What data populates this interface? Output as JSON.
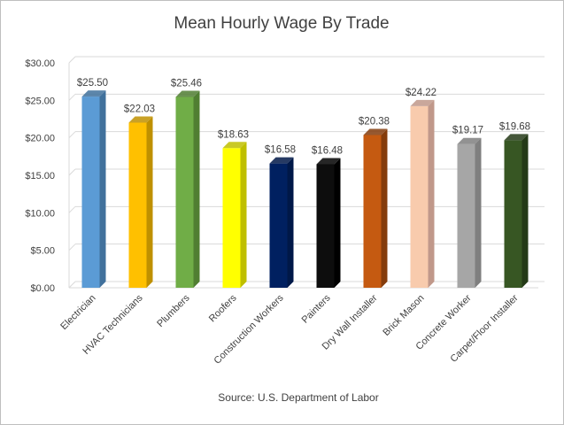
{
  "chart_data": {
    "type": "bar",
    "title": "Mean Hourly Wage By Trade",
    "source": "Source: U.S. Department of Labor",
    "categories": [
      "Electrician",
      "HVAC Technicians",
      "Plumbers",
      "Roofers",
      "Construction Workers",
      "Painters",
      "Dry Wall Installer",
      "Brick Mason",
      "Concrete Worker",
      "Carpet/Floor Installer"
    ],
    "values": [
      25.5,
      22.03,
      25.46,
      18.63,
      16.58,
      16.48,
      20.38,
      24.22,
      19.17,
      19.68
    ],
    "value_labels": [
      "$25.50",
      "$22.03",
      "$25.46",
      "$18.63",
      "$16.58",
      "$16.48",
      "$20.38",
      "$24.22",
      "$19.17",
      "$19.68"
    ],
    "y_ticks": [
      "$0.00",
      "$5.00",
      "$10.00",
      "$15.00",
      "$20.00",
      "$25.00",
      "$30.00"
    ],
    "ylim": [
      0,
      30
    ],
    "grid": true,
    "legend": "none",
    "colors": [
      "#5b9bd5",
      "#ffc000",
      "#70ad47",
      "#ffff00",
      "#002060",
      "#0d0d0d",
      "#c55a11",
      "#f8cbad",
      "#a6a6a6",
      "#375623"
    ],
    "side_colors": [
      "#41719c",
      "#bf9000",
      "#507e32",
      "#bfbf00",
      "#001848",
      "#000000",
      "#843c0c",
      "#c0988a",
      "#7f7f7f",
      "#243a17"
    ]
  }
}
